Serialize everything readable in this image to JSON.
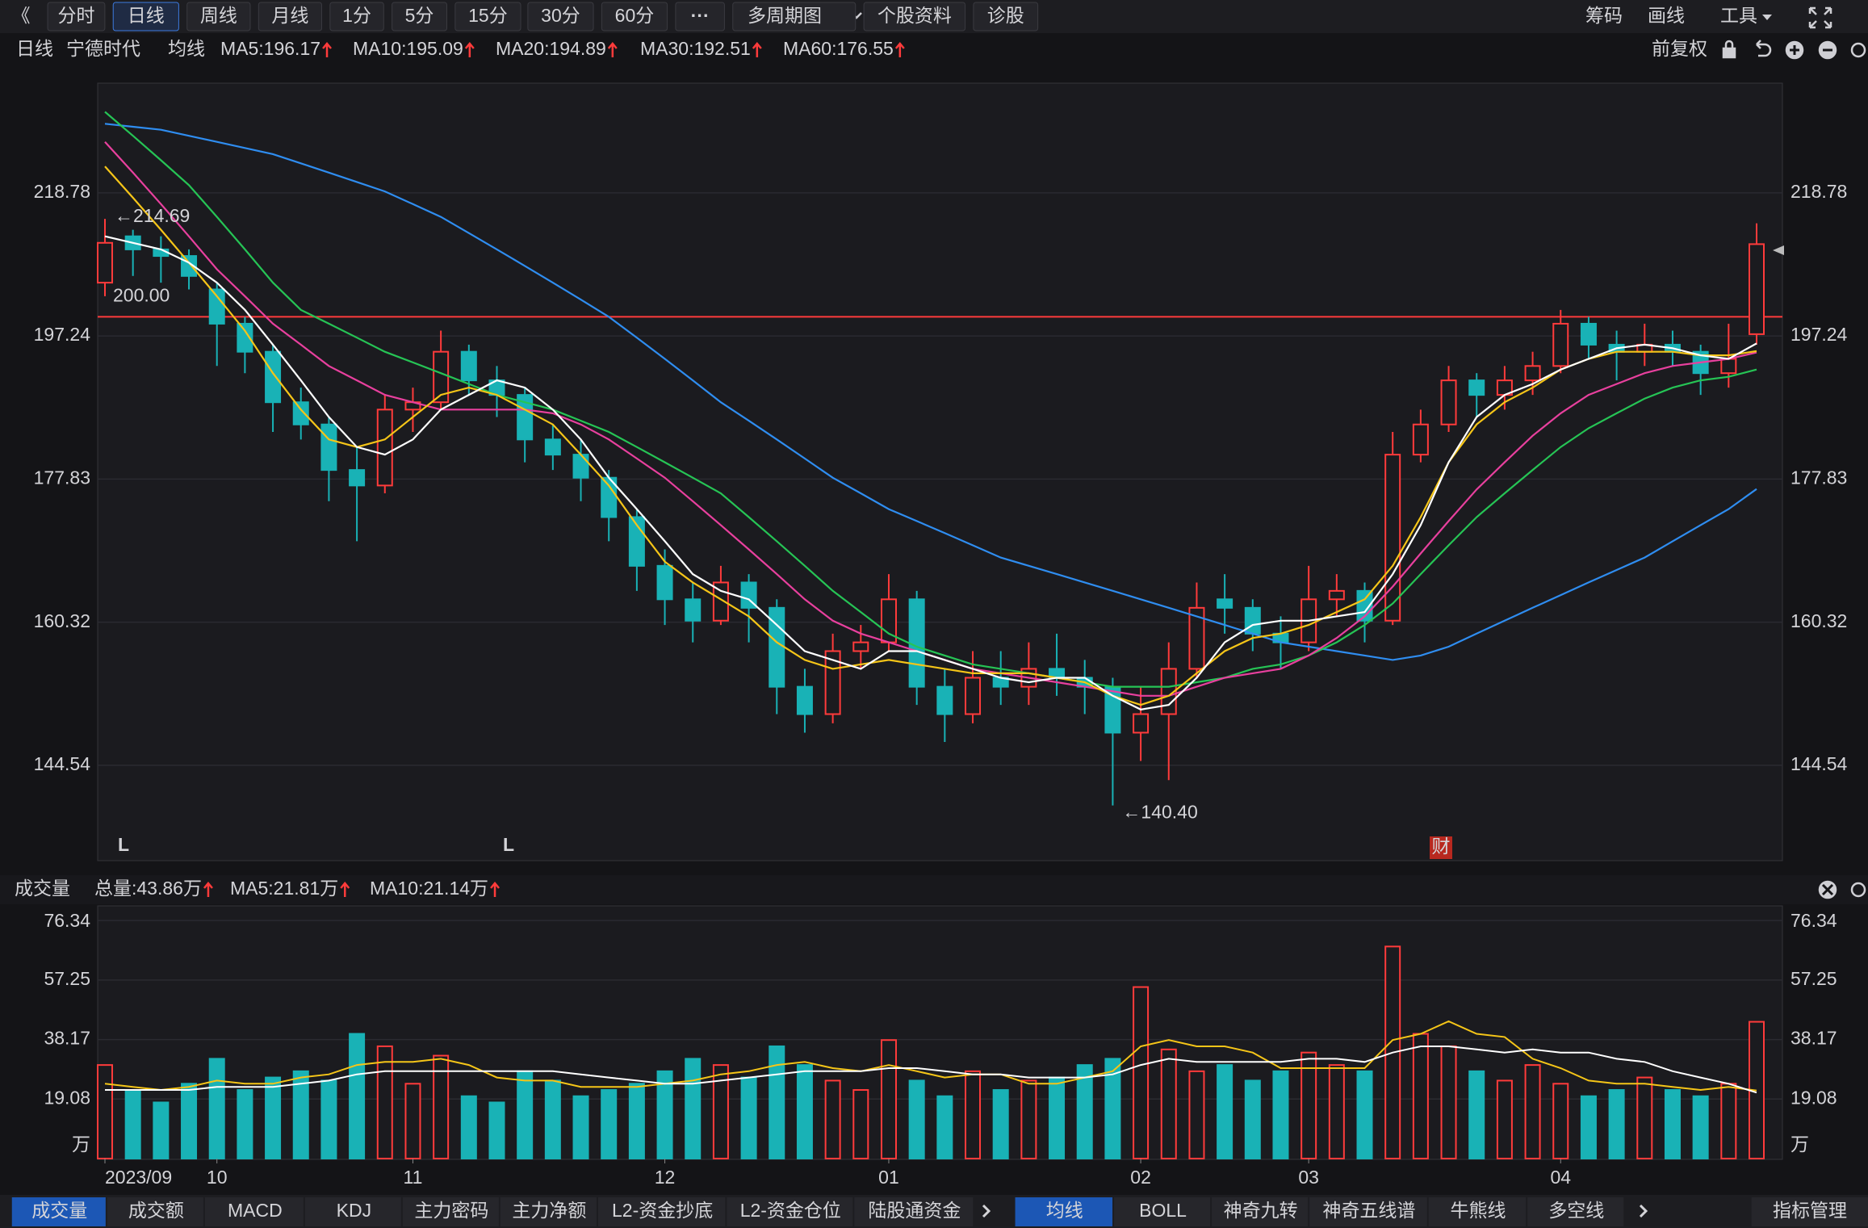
{
  "toolbar": {
    "back": "《",
    "left": [
      "分时",
      "日线",
      "周线",
      "月线",
      "1分",
      "5分",
      "15分",
      "30分",
      "60分",
      "···",
      "多周期图",
      "个股资料",
      "诊股"
    ],
    "active": "日线",
    "right": [
      "筹码",
      "画线",
      "工具"
    ]
  },
  "info_bar": {
    "period": "日线",
    "stock": "宁德时代",
    "ma_title": "均线",
    "adjust": "前复权",
    "ma_labels": [
      {
        "text": "MA5:196.17",
        "color": "#ffffff"
      },
      {
        "text": "MA10:195.09",
        "color": "#f5c518"
      },
      {
        "text": "MA20:194.89",
        "color": "#e8409e"
      },
      {
        "text": "MA30:192.51",
        "color": "#26c455"
      },
      {
        "text": "MA60:176.55",
        "color": "#2f8df0"
      }
    ]
  },
  "markers": [
    "L",
    "L",
    "财"
  ],
  "volume_header": {
    "title": "成交量",
    "labels": [
      {
        "text": "总量:43.86万",
        "color": "#ff4a4a"
      },
      {
        "text": "MA5:21.81万",
        "color": "#f5c518"
      },
      {
        "text": "MA10:21.14万",
        "color": "#ffffff"
      }
    ]
  },
  "bottom_tabs": {
    "left": [
      "成交量",
      "成交额",
      "MACD",
      "KDJ",
      "主力密码",
      "主力净额",
      "L2-资金抄底",
      "L2-资金仓位",
      "陆股通资金"
    ],
    "right": [
      "均线",
      "BOLL",
      "神奇九转",
      "神奇五线谱",
      "牛熊线",
      "多空线"
    ],
    "manage": "指标管理",
    "active_left": "成交量",
    "active_right": "均线"
  },
  "chart_data": [
    {
      "type": "candlestick",
      "log_scale": true,
      "grid": true,
      "up_color": "#ff3b3b",
      "down_color": "#19b2b6",
      "ylim": [
        134.9,
        236.86
      ],
      "yticks": [
        144.54,
        160.32,
        177.83,
        197.24,
        218.78
      ],
      "reference_lines": [
        {
          "value": 200,
          "label": "200.00",
          "color": "#ff3b3b"
        }
      ],
      "annotations": [
        {
          "value": 214.69,
          "label": "←214.69"
        },
        {
          "value": 140.4,
          "label": "←140.40"
        }
      ],
      "open": [
        205,
        212,
        210,
        209,
        204,
        199,
        195,
        188,
        185,
        179,
        177,
        187,
        188,
        195,
        191,
        189,
        183,
        181,
        178,
        173,
        167,
        163,
        160.5,
        165,
        162,
        153,
        150,
        157,
        158,
        163,
        153,
        150,
        154,
        153,
        155,
        154,
        153,
        148,
        150,
        155,
        163,
        162,
        159,
        158,
        163,
        164,
        160.5,
        181,
        185,
        191,
        189,
        191,
        193,
        199,
        196,
        195,
        196,
        195,
        192,
        197.5
      ],
      "high": [
        214.69,
        213,
        212,
        210,
        205,
        200,
        196,
        190,
        186,
        182,
        189,
        190,
        198,
        196,
        193,
        190,
        185,
        183,
        179,
        174,
        169,
        165,
        167,
        166,
        163,
        155,
        159,
        160,
        166,
        164,
        155,
        157,
        157,
        158,
        159,
        156,
        154,
        153,
        158,
        165,
        166,
        163,
        161,
        167,
        166,
        165,
        184,
        187,
        193,
        192,
        193,
        195,
        201,
        200,
        198,
        199,
        198,
        196,
        199,
        214
      ],
      "low": [
        203,
        206,
        205,
        204,
        193,
        192,
        184,
        183,
        175,
        170,
        176,
        184,
        187,
        189,
        186,
        180,
        179,
        175,
        170,
        164,
        160,
        158,
        160,
        158,
        150,
        148,
        149,
        155,
        157,
        151,
        147,
        149,
        151,
        151,
        152,
        150,
        140.4,
        145,
        143,
        154,
        159,
        157,
        155,
        157,
        161,
        158,
        160,
        180,
        184,
        186,
        187,
        189,
        192,
        194,
        191,
        193,
        193,
        189,
        190,
        196
      ],
      "close": [
        211,
        210,
        209,
        206,
        199,
        195,
        188,
        185,
        179,
        177,
        187,
        188,
        195,
        191,
        189,
        183,
        181,
        178,
        173,
        167,
        163,
        160.5,
        165,
        162,
        153,
        150,
        157,
        158,
        163,
        153,
        150,
        154,
        153,
        155,
        154,
        153,
        148,
        150,
        155,
        162,
        162,
        159,
        158,
        163,
        164,
        160.5,
        181,
        185,
        191,
        189,
        191,
        193,
        199,
        196,
        195,
        196,
        195,
        192,
        194,
        210.8
      ],
      "series": [
        {
          "name": "MA60",
          "color": "#2f8df0",
          "values": [
            230,
            229.5,
            229,
            228,
            227,
            226,
            225,
            223.5,
            222,
            220.5,
            219,
            217,
            215,
            212.5,
            210,
            207.5,
            205,
            202.5,
            200,
            197,
            194,
            191,
            188,
            185.5,
            183,
            180.5,
            178,
            176,
            174,
            172.5,
            171,
            169.5,
            168,
            167,
            166,
            165,
            164,
            163,
            162,
            161,
            160,
            159,
            158,
            157.5,
            157,
            156.5,
            156,
            156.5,
            157.5,
            159,
            160.5,
            162,
            163.5,
            165,
            166.5,
            168,
            170,
            172,
            174,
            176.55
          ]
        },
        {
          "name": "MA30",
          "color": "#26c455",
          "values": [
            232,
            228,
            224,
            220,
            215,
            210,
            205,
            201,
            199,
            197,
            195,
            193.5,
            192,
            190.5,
            189,
            188,
            187,
            185.5,
            184,
            182,
            180,
            178,
            176,
            173,
            170,
            167,
            164,
            161.5,
            159,
            157.5,
            156.5,
            155.5,
            155,
            154.5,
            154,
            153.5,
            153,
            153,
            153,
            153.5,
            154,
            155,
            155.5,
            156.5,
            158,
            160,
            162.5,
            166,
            169.5,
            173,
            176,
            179,
            182,
            184.5,
            186.5,
            188.5,
            190,
            191,
            191.5,
            192.51
          ]
        },
        {
          "name": "MA20",
          "color": "#e8409e",
          "values": [
            227,
            222,
            217,
            212,
            207,
            203,
            199,
            196,
            193,
            191,
            189,
            188,
            187,
            187,
            187,
            187,
            186.5,
            185,
            183,
            180.5,
            178,
            175,
            172,
            169,
            166,
            163,
            160.5,
            159,
            158,
            157,
            156,
            155,
            154.5,
            154,
            153.5,
            153,
            152.5,
            152,
            152,
            153,
            154,
            154.5,
            155,
            156.5,
            158.5,
            161,
            164.5,
            168.5,
            172.5,
            176.5,
            180,
            183.5,
            186.5,
            189,
            190.5,
            192,
            193,
            193.5,
            194,
            194.89
          ]
        },
        {
          "name": "MA10",
          "color": "#f5c518",
          "values": [
            223,
            218,
            213,
            208,
            203,
            198,
            192,
            187,
            183,
            182,
            183,
            186,
            189,
            190,
            189,
            187,
            185,
            181,
            177,
            172,
            167.5,
            165,
            163,
            161,
            158,
            156,
            155,
            155.5,
            156,
            155.5,
            155,
            154.5,
            154.5,
            154.5,
            154,
            153.5,
            152,
            151,
            152,
            154.5,
            157,
            158.5,
            159,
            160,
            161.5,
            163,
            167,
            173,
            180,
            185,
            188,
            190,
            192.5,
            194,
            195,
            195,
            195,
            194.5,
            194.5,
            195.09
          ]
        },
        {
          "name": "MA5",
          "color": "#ffffff",
          "values": [
            212,
            211,
            210,
            208,
            205,
            201,
            196,
            191,
            186,
            182,
            181,
            183,
            187,
            189,
            191,
            190,
            187,
            183,
            178,
            174,
            170,
            166,
            164,
            163,
            160,
            157,
            156,
            155,
            157,
            157,
            156,
            155,
            154,
            153.5,
            154,
            154,
            152,
            150.5,
            151,
            154,
            158,
            160,
            160.5,
            160.5,
            161,
            161.5,
            166,
            172,
            180,
            186,
            189,
            190.5,
            192.5,
            194,
            195.5,
            196,
            195.5,
            194.5,
            194,
            196.17
          ]
        }
      ]
    },
    {
      "type": "bar",
      "grid": true,
      "ylim": [
        0,
        80
      ],
      "yticks": [
        {
          "value": 0,
          "label": "万"
        },
        19.08,
        38.17,
        57.25,
        76.34
      ],
      "categories": [
        "2023/09",
        null,
        null,
        null,
        "10",
        null,
        null,
        null,
        null,
        null,
        null,
        "11",
        null,
        null,
        null,
        null,
        null,
        null,
        null,
        null,
        "12",
        null,
        null,
        null,
        null,
        null,
        null,
        null,
        "01",
        null,
        null,
        null,
        null,
        null,
        null,
        null,
        null,
        "02",
        null,
        null,
        null,
        null,
        null,
        "03",
        null,
        null,
        null,
        null,
        null,
        null,
        null,
        null,
        "04",
        null,
        null,
        null,
        null,
        null,
        null,
        null
      ],
      "values": [
        30,
        22,
        18,
        24,
        32,
        22,
        26,
        28,
        25,
        40,
        36,
        24,
        33,
        20,
        18,
        28,
        25,
        20,
        22,
        24,
        28,
        32,
        30,
        26,
        36,
        30,
        25,
        22,
        38,
        25,
        20,
        28,
        22,
        25,
        26,
        30,
        32,
        55,
        35,
        28,
        30,
        25,
        28,
        34,
        30,
        28,
        68,
        40,
        36,
        28,
        25,
        30,
        24,
        20,
        22,
        26,
        22,
        20,
        24,
        43.86
      ],
      "series": [
        {
          "name": "MA5",
          "color": "#f5c518",
          "values": [
            24,
            23,
            22,
            23,
            25,
            24,
            24,
            26,
            27,
            30,
            31,
            31,
            32,
            30,
            26,
            25,
            25,
            23,
            23,
            23,
            24,
            25,
            27,
            28,
            30,
            31,
            29,
            28,
            30,
            28,
            26,
            27,
            27,
            24,
            24,
            26,
            28,
            36,
            38,
            36,
            36,
            34,
            29,
            29,
            29,
            29,
            38,
            40,
            44,
            40,
            39,
            32,
            29,
            25,
            24,
            24,
            23,
            22,
            23,
            21.81
          ]
        },
        {
          "name": "MA10",
          "color": "#ffffff",
          "values": [
            22,
            22,
            22,
            22,
            23,
            23,
            23,
            24,
            25,
            27,
            28,
            28,
            28,
            28,
            28,
            28,
            28,
            27,
            26,
            25,
            24,
            24,
            25,
            26,
            27,
            28,
            28,
            28,
            29,
            29,
            28,
            27,
            27,
            26,
            26,
            26,
            27,
            30,
            32,
            31,
            31,
            31,
            31,
            32,
            32,
            31,
            34,
            36,
            36,
            35,
            34,
            35,
            34,
            34,
            32,
            31,
            28,
            26,
            24,
            21.14
          ]
        }
      ]
    }
  ]
}
